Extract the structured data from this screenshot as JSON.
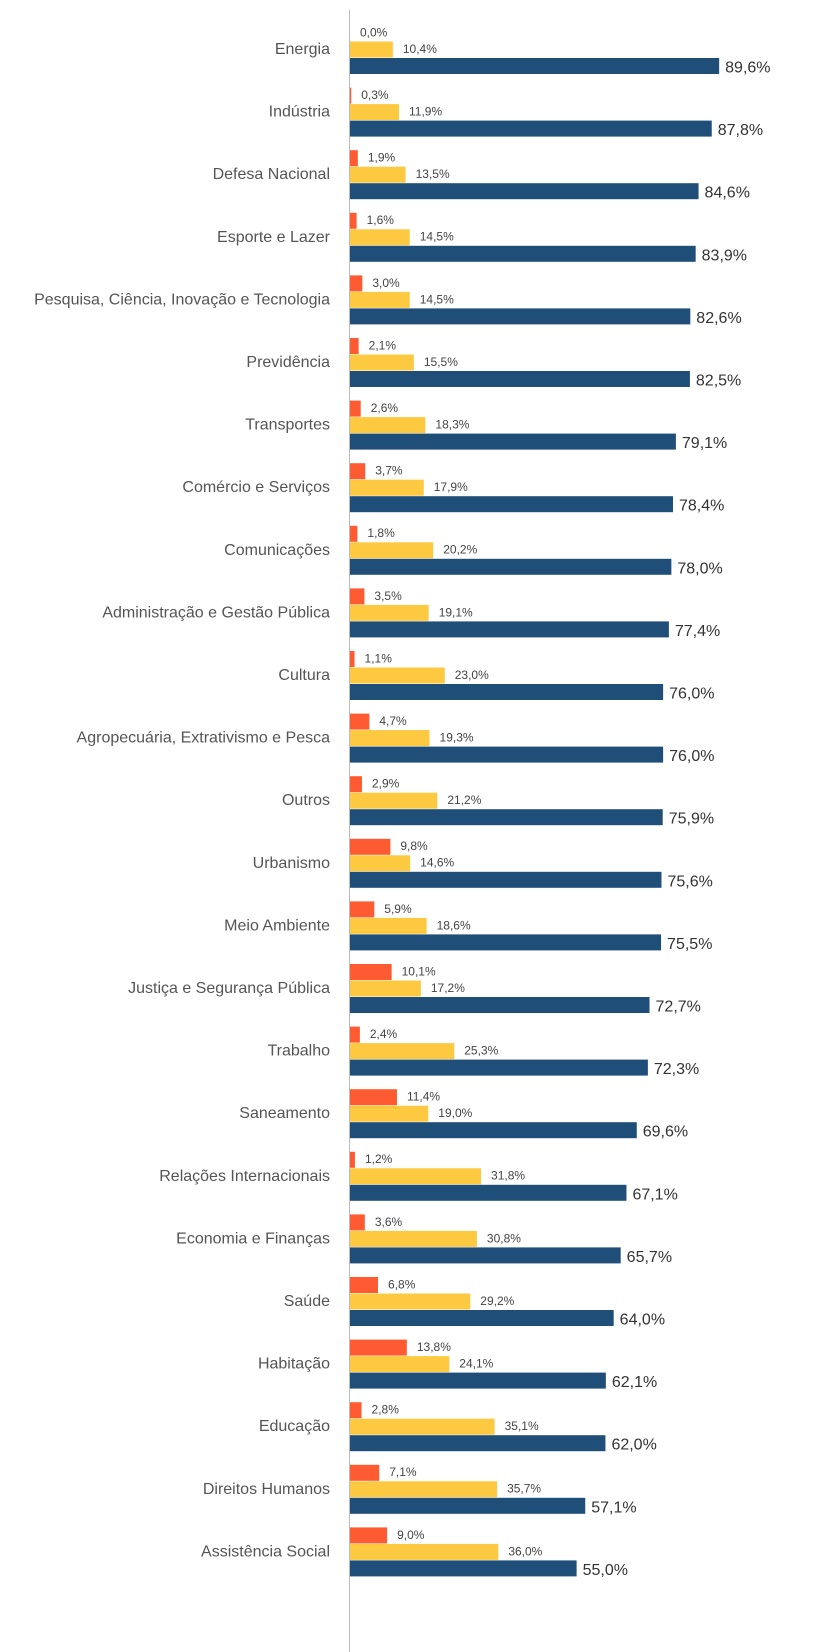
{
  "chart_data": {
    "type": "hbar",
    "categories": [
      "Energia",
      "Indústria",
      "Defesa Nacional",
      "Esporte e Lazer",
      "Pesquisa, Ciência, Inovação e Tecnologia",
      "Previdência",
      "Transportes",
      "Comércio e Serviços",
      "Comunicações",
      "Administração e Gestão Pública",
      "Cultura",
      "Agropecuária, Extrativismo e Pesca",
      "Outros",
      "Urbanismo",
      "Meio Ambiente",
      "Justiça e Segurança Pública",
      "Trabalho",
      "Saneamento",
      "Relações Internacionais",
      "Economia e Finanças",
      "Saúde",
      "Habitação",
      "Educação",
      "Direitos Humanos",
      "Assistência Social"
    ],
    "series": [
      {
        "color": "#ff5b33",
        "values": [
          0.0,
          0.3,
          1.9,
          1.6,
          3.0,
          2.1,
          2.6,
          3.7,
          1.8,
          3.5,
          1.1,
          4.7,
          2.9,
          9.8,
          5.9,
          10.1,
          2.4,
          11.4,
          1.2,
          3.6,
          6.8,
          13.8,
          2.8,
          7.1,
          9.0
        ],
        "value_labels": [
          "0,0%",
          "0,3%",
          "1,9%",
          "1,6%",
          "3,0%",
          "2,1%",
          "2,6%",
          "3,7%",
          "1,8%",
          "3,5%",
          "1,1%",
          "4,7%",
          "2,9%",
          "9,8%",
          "5,9%",
          "10,1%",
          "2,4%",
          "11,4%",
          "1,2%",
          "3,6%",
          "6,8%",
          "13,8%",
          "2,8%",
          "7,1%",
          "9,0%"
        ]
      },
      {
        "color": "#fdc940",
        "values": [
          10.4,
          11.9,
          13.5,
          14.5,
          14.5,
          15.5,
          18.3,
          17.9,
          20.2,
          19.1,
          23.0,
          19.3,
          21.2,
          14.6,
          18.6,
          17.2,
          25.3,
          19.0,
          31.8,
          30.8,
          29.2,
          24.1,
          35.1,
          35.7,
          36.0
        ],
        "value_labels": [
          "10,4%",
          "11,9%",
          "13,5%",
          "14,5%",
          "14,5%",
          "15,5%",
          "18,3%",
          "17,9%",
          "20,2%",
          "19,1%",
          "23,0%",
          "19,3%",
          "21,2%",
          "14,6%",
          "18,6%",
          "17,2%",
          "25,3%",
          "19,0%",
          "31,8%",
          "30,8%",
          "29,2%",
          "24,1%",
          "35,1%",
          "35,7%",
          "36,0%"
        ]
      },
      {
        "color": "#1f4e79",
        "values": [
          89.6,
          87.8,
          84.6,
          83.9,
          82.6,
          82.5,
          79.1,
          78.4,
          78.0,
          77.4,
          76.0,
          76.0,
          75.9,
          75.6,
          75.5,
          72.7,
          72.3,
          69.6,
          67.1,
          65.7,
          64.0,
          62.1,
          62.0,
          57.1,
          55.0
        ],
        "value_labels": [
          "89,6%",
          "87,8%",
          "84,6%",
          "83,9%",
          "82,6%",
          "82,5%",
          "79,1%",
          "78,4%",
          "78,0%",
          "77,4%",
          "76,0%",
          "76,0%",
          "75,9%",
          "75,6%",
          "75,5%",
          "72,7%",
          "72,3%",
          "69,6%",
          "67,1%",
          "65,7%",
          "64,0%",
          "62,1%",
          "62,0%",
          "57,1%",
          "55,0%"
        ]
      }
    ],
    "xlim": [
      0,
      100
    ]
  }
}
